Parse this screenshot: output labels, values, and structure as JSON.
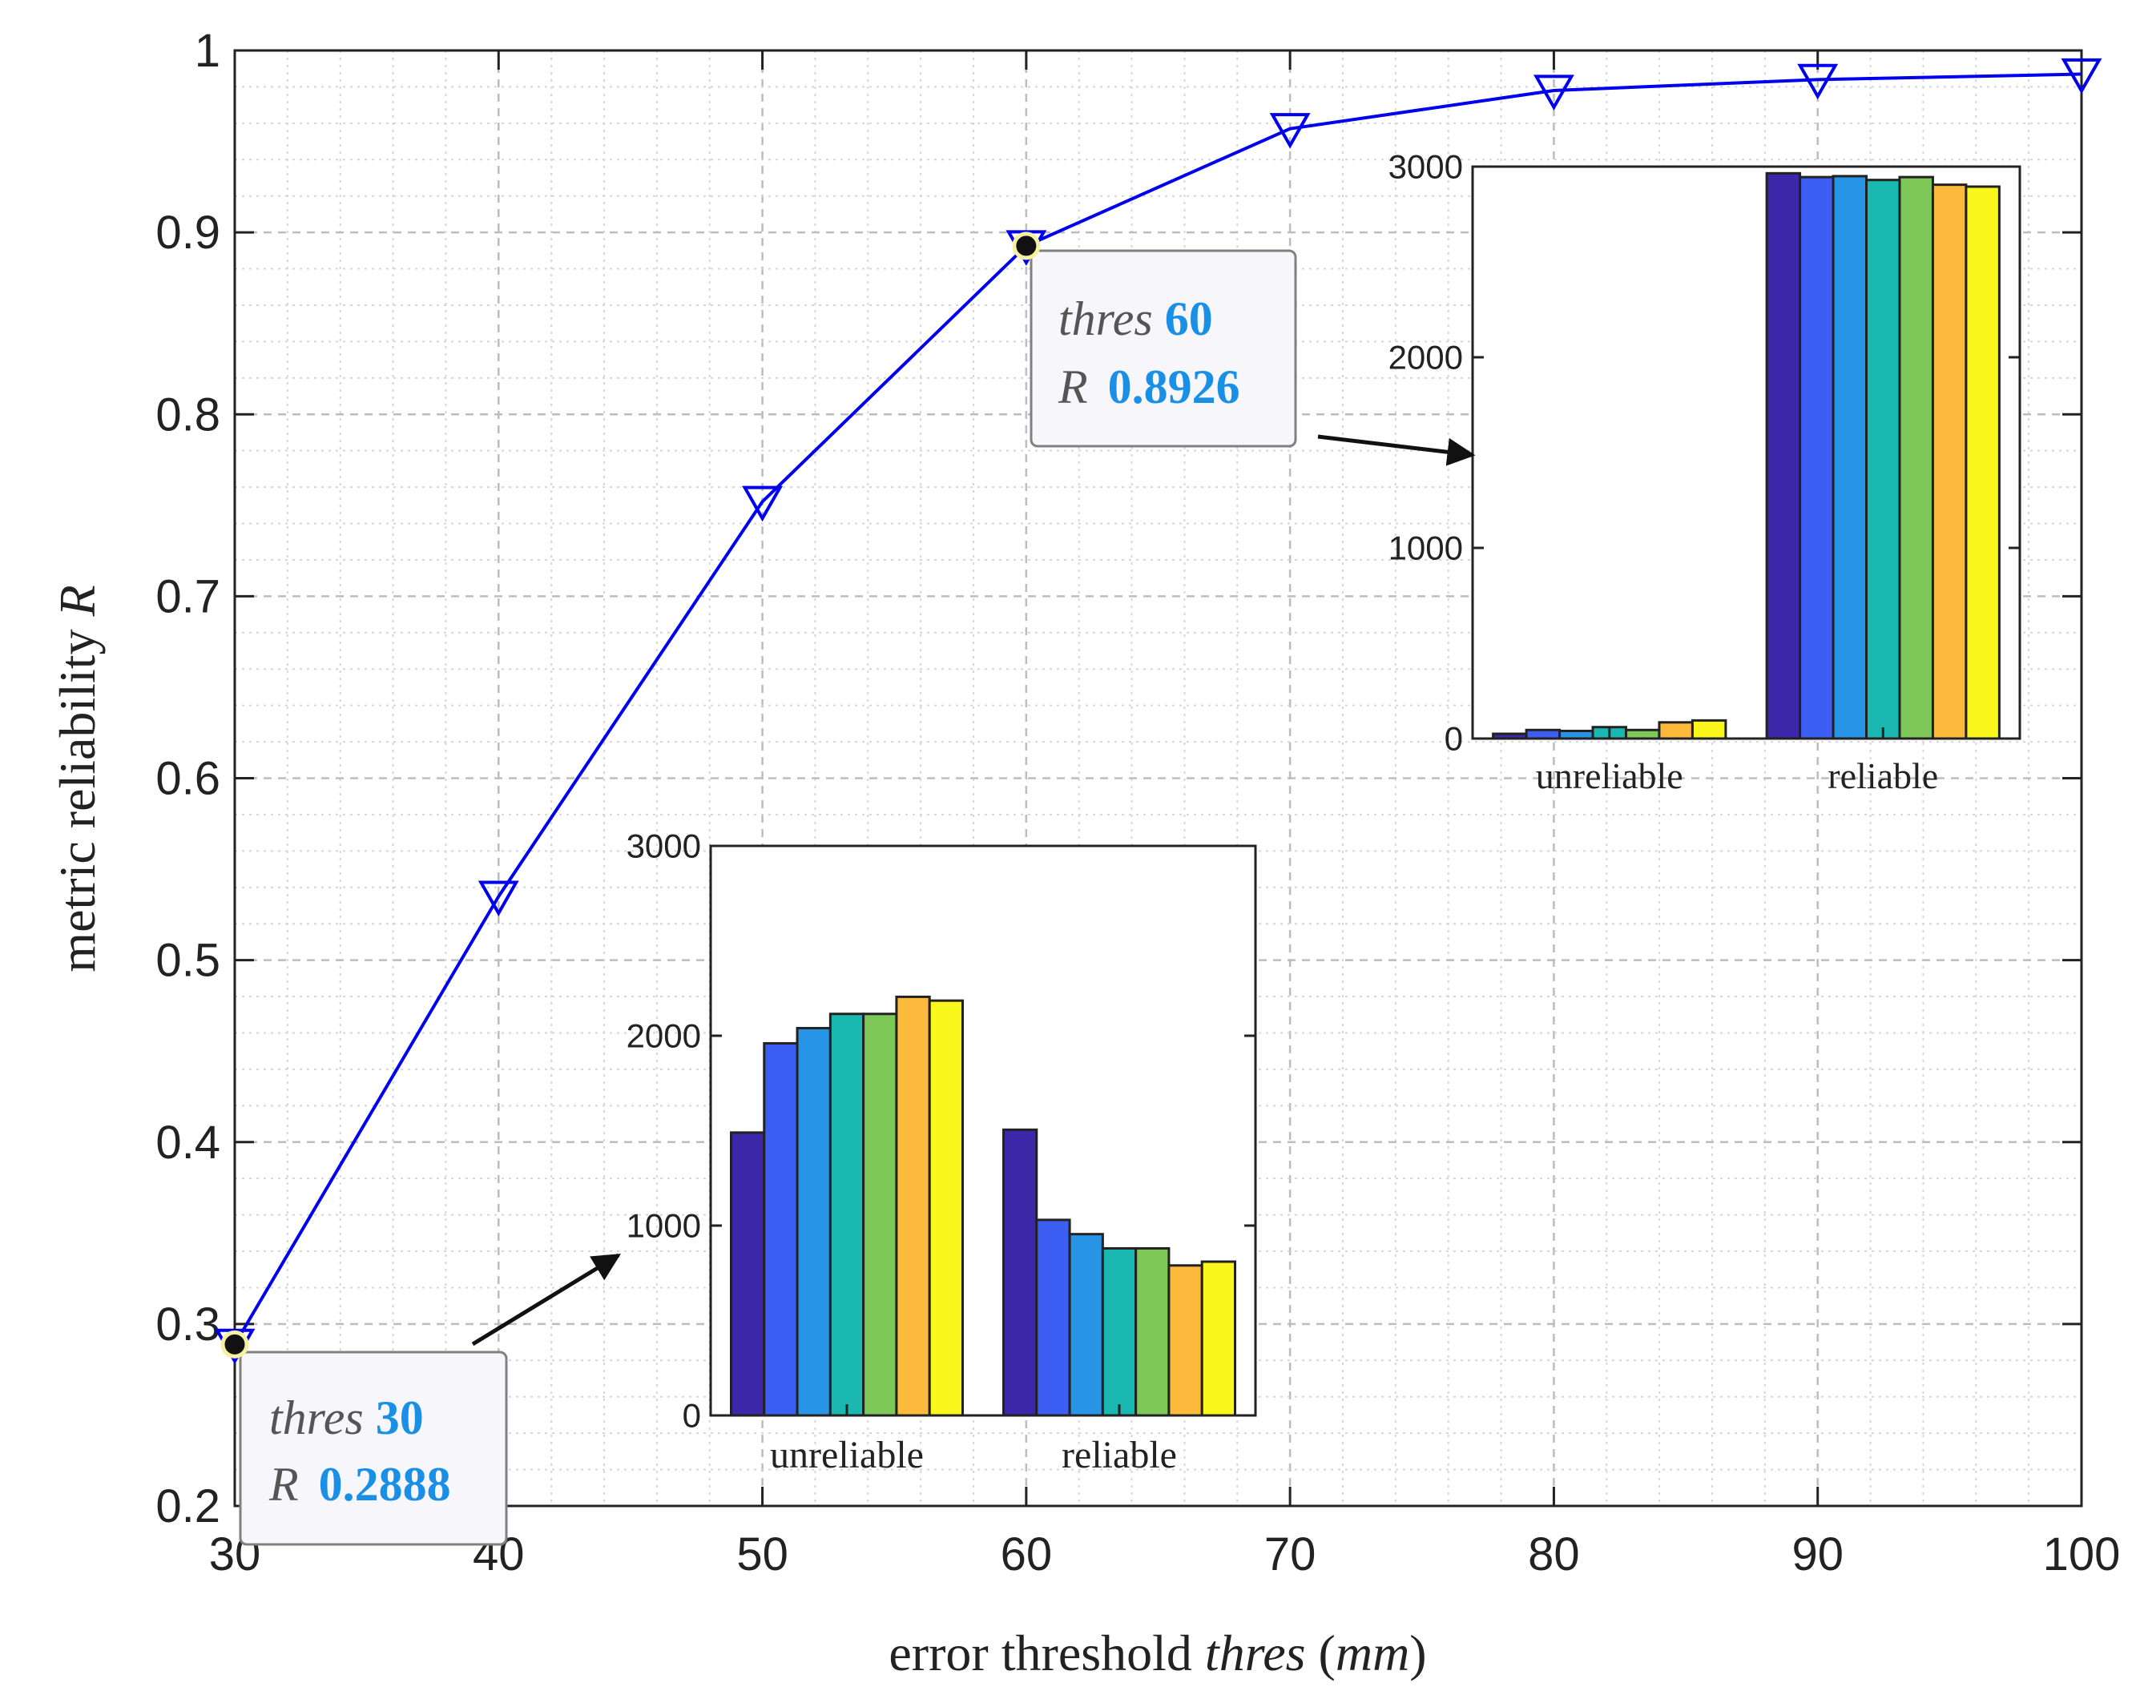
{
  "chart_data": [
    {
      "id": "main",
      "type": "line",
      "xlabel": {
        "prefix": "error threshold ",
        "var": "thres",
        "unit": "mm"
      },
      "ylabel": {
        "prefix": "metric reliability ",
        "var": "R"
      },
      "xlim": [
        30,
        100
      ],
      "ylim": [
        0.2,
        1
      ],
      "xticks": [
        30,
        40,
        50,
        60,
        70,
        80,
        90,
        100
      ],
      "yticks": [
        0.2,
        0.3,
        0.4,
        0.5,
        0.6,
        0.7,
        0.8,
        0.9,
        1
      ],
      "ytick_labels": [
        "0.2",
        "0.3",
        "0.4",
        "0.5",
        "0.6",
        "0.7",
        "0.8",
        "0.9",
        "1"
      ],
      "grid": true,
      "minor_grid": true,
      "marker": "down-triangle",
      "series": [
        {
          "name": "R",
          "color": "#0000ee",
          "x": [
            30,
            40,
            50,
            60,
            70,
            80,
            90,
            100
          ],
          "y": [
            0.2888,
            0.535,
            0.752,
            0.8926,
            0.957,
            0.978,
            0.984,
            0.987
          ]
        }
      ],
      "datatips": [
        {
          "var1": "thres",
          "value1": "30",
          "var2": "R",
          "value2": "0.2888",
          "x": 30,
          "y": 0.2888
        },
        {
          "var1": "thres",
          "value1": "60",
          "var2": "R",
          "value2": "0.8926",
          "x": 60,
          "y": 0.8926
        }
      ]
    },
    {
      "id": "inset-thres-60",
      "type": "bar",
      "categories": [
        "unreliable",
        "reliable"
      ],
      "ylim": [
        0,
        3000
      ],
      "yticks": [
        0,
        1000,
        2000,
        3000
      ],
      "series": [
        {
          "name": "s1",
          "color": "#3b27a8",
          "values": [
            25,
            2965
          ]
        },
        {
          "name": "s2",
          "color": "#3d5ef2",
          "values": [
            45,
            2945
          ]
        },
        {
          "name": "s3",
          "color": "#2794e6",
          "values": [
            40,
            2950
          ]
        },
        {
          "name": "s4",
          "color": "#1ab8b0",
          "values": [
            60,
            2930
          ]
        },
        {
          "name": "s5",
          "color": "#7ec85a",
          "values": [
            45,
            2945
          ]
        },
        {
          "name": "s6",
          "color": "#fdb93c",
          "values": [
            85,
            2905
          ]
        },
        {
          "name": "s7",
          "color": "#f9f71c",
          "values": [
            95,
            2895
          ]
        }
      ]
    },
    {
      "id": "inset-thres-30",
      "type": "bar",
      "categories": [
        "unreliable",
        "reliable"
      ],
      "ylim": [
        0,
        3000
      ],
      "yticks": [
        0,
        1000,
        2000,
        3000
      ],
      "series": [
        {
          "name": "s1",
          "color": "#3b27a8",
          "values": [
            1490,
            1505
          ]
        },
        {
          "name": "s2",
          "color": "#3d5ef2",
          "values": [
            1960,
            1030
          ]
        },
        {
          "name": "s3",
          "color": "#2794e6",
          "values": [
            2040,
            955
          ]
        },
        {
          "name": "s4",
          "color": "#1ab8b0",
          "values": [
            2115,
            880
          ]
        },
        {
          "name": "s5",
          "color": "#7ec85a",
          "values": [
            2115,
            880
          ]
        },
        {
          "name": "s6",
          "color": "#fdb93c",
          "values": [
            2205,
            790
          ]
        },
        {
          "name": "s7",
          "color": "#f9f71c",
          "values": [
            2185,
            810
          ]
        }
      ]
    }
  ],
  "colors": {
    "line": "#0000ee",
    "tip_value": "#1a8fe6",
    "tip_label": "#555555"
  }
}
